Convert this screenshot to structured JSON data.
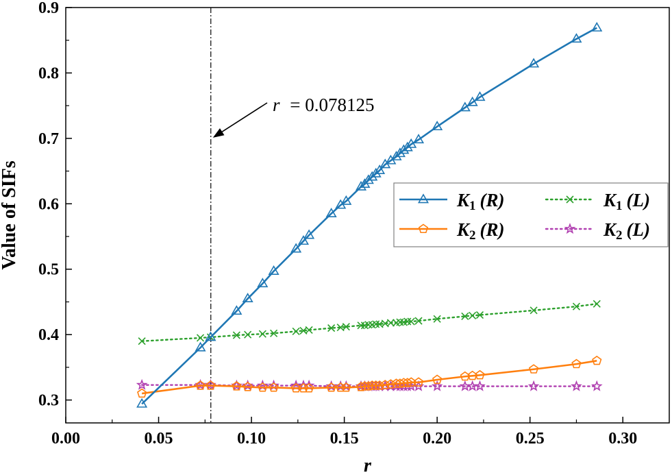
{
  "chart_data": {
    "type": "line",
    "xlabel": "r",
    "ylabel": "Value of SIFs",
    "xlim": [
      0.0,
      0.325
    ],
    "ylim": [
      0.265,
      0.9
    ],
    "xticks": [
      0.0,
      0.05,
      0.1,
      0.15,
      0.2,
      0.25,
      0.3
    ],
    "xtick_labels": [
      "0.00",
      "0.05",
      "0.10",
      "0.15",
      "0.20",
      "0.25",
      "0.30"
    ],
    "yticks": [
      0.3,
      0.4,
      0.5,
      0.6,
      0.7,
      0.8,
      0.9
    ],
    "ytick_labels": [
      "0.3",
      "0.4",
      "0.5",
      "0.6",
      "0.7",
      "0.8",
      "0.9"
    ],
    "reference_line": {
      "x": 0.078125,
      "style": "dash-dot"
    },
    "annotation": {
      "prefix": "r",
      "text": "= 0.078125",
      "points_to": {
        "x": 0.078125,
        "y": 0.7
      }
    },
    "legend_position": "center-right",
    "series": [
      {
        "name": "K1 (R)",
        "k": "K",
        "sub": "1",
        "paren": "(R)",
        "color": "#1f77b4",
        "line": "solid",
        "marker": "triangle",
        "x": [
          0.041,
          0.0725,
          0.078,
          0.092,
          0.098,
          0.106,
          0.112,
          0.124,
          0.128,
          0.131,
          0.143,
          0.148,
          0.151,
          0.159,
          0.161,
          0.163,
          0.165,
          0.167,
          0.169,
          0.172,
          0.175,
          0.178,
          0.18,
          0.182,
          0.184,
          0.186,
          0.19,
          0.2,
          0.215,
          0.219,
          0.223,
          0.252,
          0.275,
          0.286
        ],
        "y": [
          0.294,
          0.38,
          0.396,
          0.436,
          0.455,
          0.478,
          0.497,
          0.531,
          0.543,
          0.552,
          0.585,
          0.598,
          0.604,
          0.626,
          0.63,
          0.636,
          0.641,
          0.646,
          0.651,
          0.66,
          0.666,
          0.672,
          0.677,
          0.682,
          0.686,
          0.691,
          0.698,
          0.718,
          0.747,
          0.755,
          0.763,
          0.814,
          0.852,
          0.869
        ]
      },
      {
        "name": "K2 (R)",
        "k": "K",
        "sub": "2",
        "paren": "(R)",
        "color": "#ff7f0e",
        "line": "solid",
        "marker": "pentagon",
        "x": [
          0.041,
          0.0725,
          0.078,
          0.092,
          0.098,
          0.106,
          0.112,
          0.124,
          0.128,
          0.131,
          0.143,
          0.148,
          0.151,
          0.159,
          0.161,
          0.163,
          0.165,
          0.167,
          0.169,
          0.172,
          0.175,
          0.178,
          0.18,
          0.182,
          0.184,
          0.186,
          0.19,
          0.2,
          0.215,
          0.219,
          0.223,
          0.252,
          0.275,
          0.286
        ],
        "y": [
          0.31,
          0.322,
          0.322,
          0.321,
          0.32,
          0.319,
          0.319,
          0.318,
          0.318,
          0.318,
          0.319,
          0.319,
          0.319,
          0.32,
          0.321,
          0.321,
          0.322,
          0.322,
          0.322,
          0.323,
          0.324,
          0.325,
          0.325,
          0.326,
          0.326,
          0.327,
          0.327,
          0.331,
          0.336,
          0.337,
          0.338,
          0.347,
          0.355,
          0.36
        ]
      },
      {
        "name": "K1 (L)",
        "k": "K",
        "sub": "1",
        "paren": "(L)",
        "color": "#2ca02c",
        "line": "dotted",
        "marker": "x",
        "x": [
          0.041,
          0.0725,
          0.078,
          0.092,
          0.098,
          0.106,
          0.112,
          0.124,
          0.128,
          0.131,
          0.143,
          0.148,
          0.151,
          0.159,
          0.161,
          0.163,
          0.165,
          0.167,
          0.169,
          0.172,
          0.175,
          0.178,
          0.18,
          0.182,
          0.184,
          0.186,
          0.19,
          0.2,
          0.215,
          0.219,
          0.223,
          0.252,
          0.275,
          0.286
        ],
        "y": [
          0.39,
          0.395,
          0.396,
          0.399,
          0.4,
          0.401,
          0.402,
          0.405,
          0.406,
          0.407,
          0.41,
          0.411,
          0.412,
          0.414,
          0.414,
          0.415,
          0.415,
          0.416,
          0.416,
          0.417,
          0.418,
          0.418,
          0.419,
          0.419,
          0.42,
          0.42,
          0.421,
          0.424,
          0.428,
          0.429,
          0.43,
          0.437,
          0.443,
          0.447
        ]
      },
      {
        "name": "K2 (L)",
        "k": "K",
        "sub": "2",
        "paren": "(L)",
        "color": "#b03fb0",
        "line": "dotted",
        "marker": "star",
        "x": [
          0.041,
          0.0725,
          0.078,
          0.092,
          0.098,
          0.106,
          0.112,
          0.124,
          0.128,
          0.131,
          0.143,
          0.148,
          0.151,
          0.159,
          0.161,
          0.163,
          0.165,
          0.167,
          0.169,
          0.172,
          0.175,
          0.178,
          0.18,
          0.182,
          0.184,
          0.186,
          0.19,
          0.2,
          0.215,
          0.219,
          0.223,
          0.252,
          0.275,
          0.286
        ],
        "y": [
          0.323,
          0.323,
          0.323,
          0.322,
          0.322,
          0.322,
          0.322,
          0.322,
          0.322,
          0.322,
          0.321,
          0.321,
          0.321,
          0.321,
          0.321,
          0.321,
          0.321,
          0.321,
          0.321,
          0.321,
          0.321,
          0.321,
          0.321,
          0.321,
          0.321,
          0.321,
          0.321,
          0.321,
          0.321,
          0.321,
          0.321,
          0.321,
          0.321,
          0.321
        ]
      }
    ]
  }
}
